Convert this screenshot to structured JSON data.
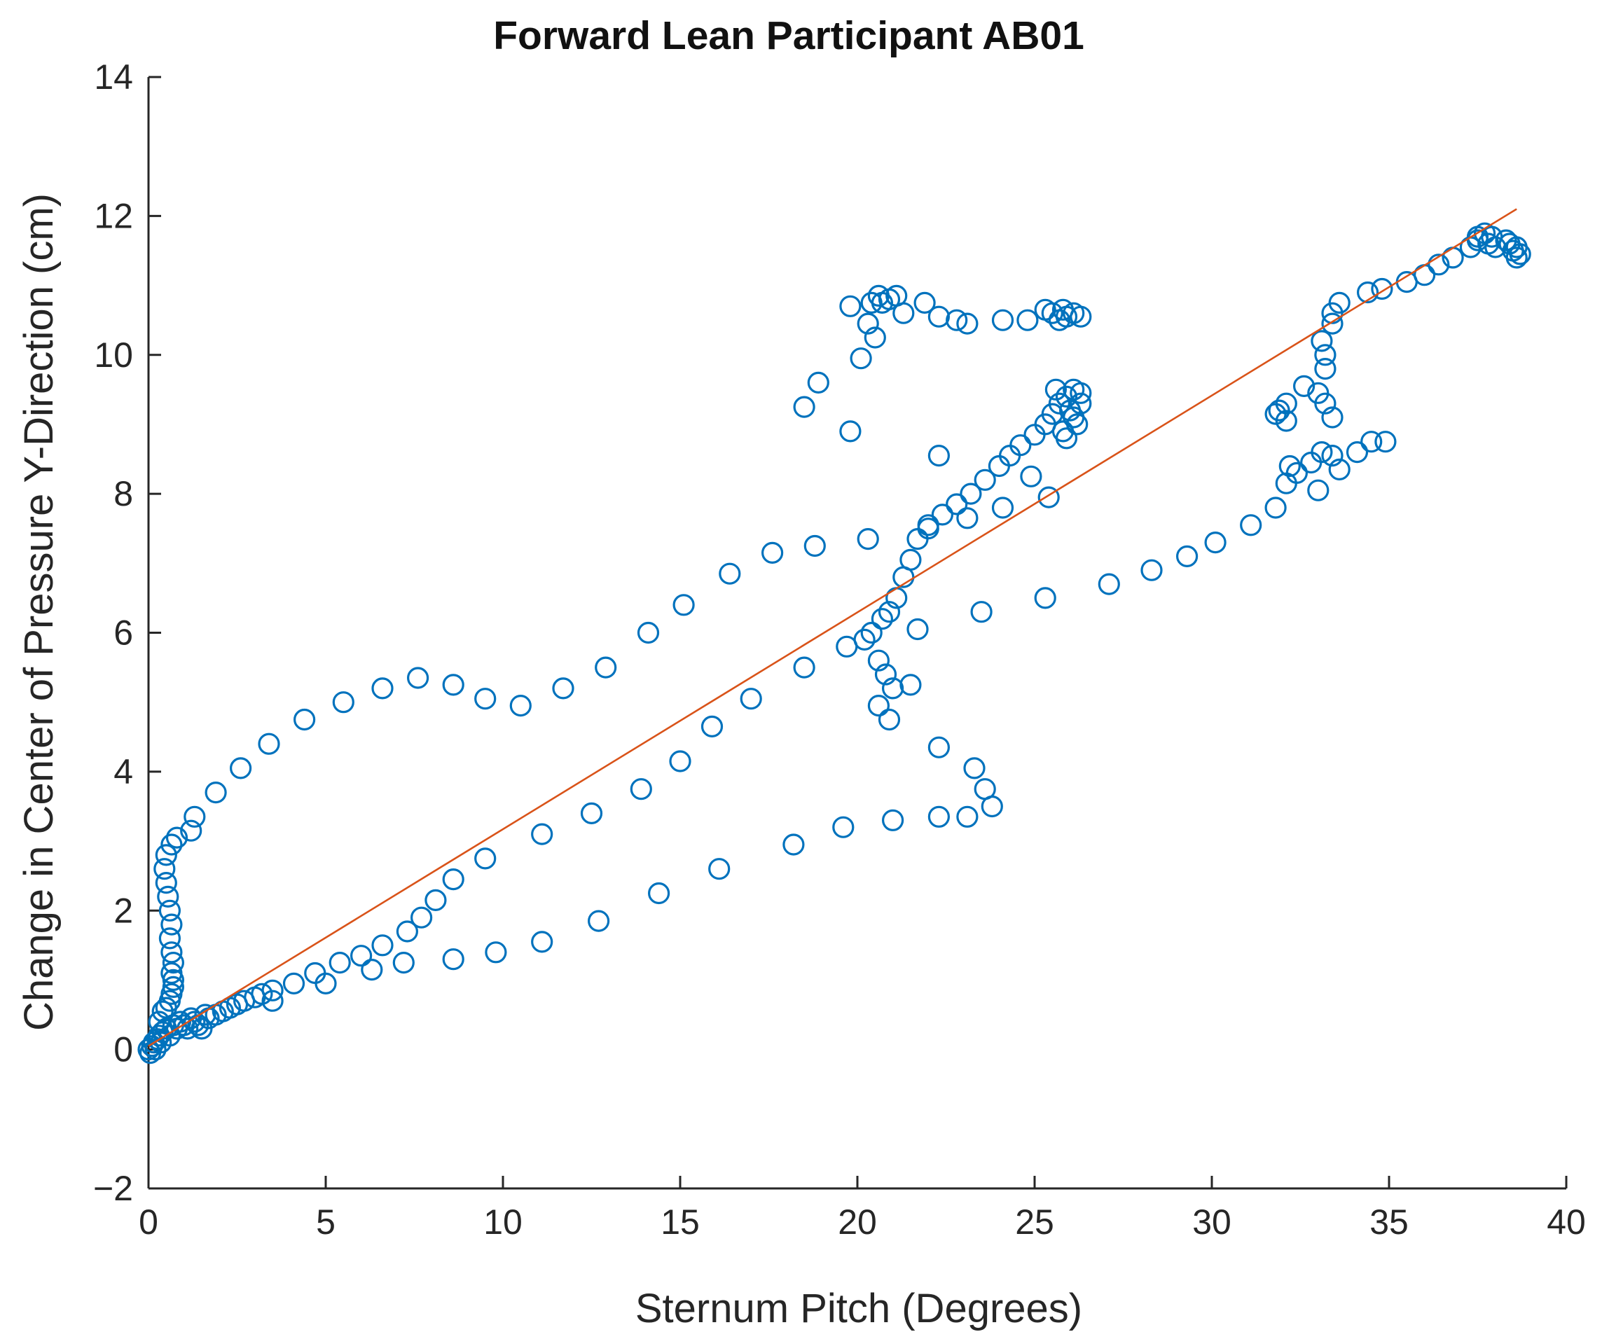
{
  "chart_data": {
    "type": "scatter",
    "title": "Forward Lean Participant AB01",
    "xlabel": "Sternum Pitch (Degrees)",
    "ylabel": "Change in Center of Pressure Y-Direction (cm)",
    "xlim": [
      0,
      40
    ],
    "ylim": [
      -2,
      14
    ],
    "xticks": [
      0,
      5,
      10,
      15,
      20,
      25,
      30,
      35,
      40
    ],
    "yticks": [
      -2,
      0,
      2,
      4,
      6,
      8,
      10,
      12,
      14
    ],
    "ytick_labels": [
      "−2",
      "0",
      "2",
      "4",
      "6",
      "8",
      "10",
      "12",
      "14"
    ],
    "grid": false,
    "colors": {
      "points": "#0072BD",
      "fit": "#D95319"
    },
    "fit_line": {
      "x": [
        0,
        38.6
      ],
      "y": [
        0.05,
        12.1
      ]
    },
    "series": [
      {
        "name": "data",
        "points": [
          [
            0,
            0
          ],
          [
            0.05,
            -0.05
          ],
          [
            0.1,
            0.05
          ],
          [
            0.15,
            0.1
          ],
          [
            0.2,
            0.0
          ],
          [
            0.25,
            0.15
          ],
          [
            0.3,
            0.2
          ],
          [
            0.35,
            0.1
          ],
          [
            0.4,
            0.25
          ],
          [
            0.5,
            0.3
          ],
          [
            0.6,
            0.2
          ],
          [
            0.7,
            0.35
          ],
          [
            0.8,
            0.3
          ],
          [
            0.9,
            0.4
          ],
          [
            1.0,
            0.35
          ],
          [
            1.1,
            0.3
          ],
          [
            1.2,
            0.45
          ],
          [
            1.3,
            0.4
          ],
          [
            1.4,
            0.35
          ],
          [
            1.5,
            0.3
          ],
          [
            1.6,
            0.5
          ],
          [
            1.7,
            0.45
          ],
          [
            1.9,
            0.5
          ],
          [
            2.1,
            0.55
          ],
          [
            2.3,
            0.6
          ],
          [
            2.5,
            0.65
          ],
          [
            2.7,
            0.7
          ],
          [
            3.0,
            0.75
          ],
          [
            3.2,
            0.8
          ],
          [
            3.5,
            0.85
          ],
          [
            3.5,
            0.7
          ],
          [
            0.3,
            0.4
          ],
          [
            0.4,
            0.55
          ],
          [
            0.5,
            0.6
          ],
          [
            0.6,
            0.7
          ],
          [
            0.65,
            0.8
          ],
          [
            0.7,
            0.9
          ],
          [
            0.7,
            1.0
          ],
          [
            0.65,
            1.1
          ],
          [
            0.7,
            1.25
          ],
          [
            0.65,
            1.4
          ],
          [
            0.6,
            1.6
          ],
          [
            0.65,
            1.8
          ],
          [
            0.6,
            2.0
          ],
          [
            0.55,
            2.2
          ],
          [
            0.5,
            2.4
          ],
          [
            0.45,
            2.6
          ],
          [
            0.5,
            2.8
          ],
          [
            0.65,
            2.95
          ],
          [
            0.8,
            3.05
          ],
          [
            1.2,
            3.15
          ],
          [
            1.3,
            3.35
          ],
          [
            1.9,
            3.7
          ],
          [
            2.6,
            4.05
          ],
          [
            3.4,
            4.4
          ],
          [
            4.4,
            4.75
          ],
          [
            5.5,
            5.0
          ],
          [
            6.6,
            5.2
          ],
          [
            7.6,
            5.35
          ],
          [
            8.6,
            5.25
          ],
          [
            9.5,
            5.05
          ],
          [
            10.5,
            4.95
          ],
          [
            11.7,
            5.2
          ],
          [
            12.9,
            5.5
          ],
          [
            14.1,
            6.0
          ],
          [
            15.1,
            6.4
          ],
          [
            16.4,
            6.85
          ],
          [
            17.6,
            7.15
          ],
          [
            18.8,
            7.25
          ],
          [
            20.3,
            7.35
          ],
          [
            4.1,
            0.95
          ],
          [
            4.7,
            1.1
          ],
          [
            5.0,
            0.95
          ],
          [
            5.4,
            1.25
          ],
          [
            6.0,
            1.35
          ],
          [
            6.3,
            1.15
          ],
          [
            6.6,
            1.5
          ],
          [
            7.2,
            1.25
          ],
          [
            7.3,
            1.7
          ],
          [
            7.7,
            1.9
          ],
          [
            8.1,
            2.15
          ],
          [
            8.6,
            2.45
          ],
          [
            9.5,
            2.75
          ],
          [
            11.1,
            3.1
          ],
          [
            12.5,
            3.4
          ],
          [
            13.9,
            3.75
          ],
          [
            15.0,
            4.15
          ],
          [
            15.9,
            4.65
          ],
          [
            17.0,
            5.05
          ],
          [
            18.5,
            5.5
          ],
          [
            19.7,
            5.8
          ],
          [
            20.2,
            5.9
          ],
          [
            20.4,
            6.0
          ],
          [
            20.7,
            6.2
          ],
          [
            20.9,
            6.3
          ],
          [
            21.1,
            6.5
          ],
          [
            21.3,
            6.8
          ],
          [
            21.5,
            7.05
          ],
          [
            21.7,
            7.35
          ],
          [
            22.0,
            7.5
          ],
          [
            22.4,
            7.7
          ],
          [
            22.8,
            7.85
          ],
          [
            23.2,
            8.0
          ],
          [
            23.6,
            8.2
          ],
          [
            24.0,
            8.4
          ],
          [
            24.3,
            8.55
          ],
          [
            24.6,
            8.7
          ],
          [
            25.0,
            8.85
          ],
          [
            25.3,
            9.0
          ],
          [
            25.5,
            9.15
          ],
          [
            25.7,
            9.3
          ],
          [
            25.9,
            9.4
          ],
          [
            26.1,
            9.5
          ],
          [
            26.3,
            9.3
          ],
          [
            26.1,
            9.1
          ],
          [
            25.8,
            8.9
          ],
          [
            26.2,
            9.0
          ],
          [
            25.6,
            9.5
          ],
          [
            26.0,
            9.2
          ],
          [
            25.9,
            8.8
          ],
          [
            26.3,
            9.45
          ],
          [
            21.7,
            6.05
          ],
          [
            20.6,
            5.6
          ],
          [
            20.8,
            5.4
          ],
          [
            21.0,
            5.2
          ],
          [
            21.5,
            5.25
          ],
          [
            20.6,
            4.95
          ],
          [
            20.9,
            4.75
          ],
          [
            22.3,
            4.35
          ],
          [
            23.3,
            4.05
          ],
          [
            23.6,
            3.75
          ],
          [
            23.8,
            3.5
          ],
          [
            23.1,
            3.35
          ],
          [
            22.3,
            3.35
          ],
          [
            21.0,
            3.3
          ],
          [
            19.6,
            3.2
          ],
          [
            18.2,
            2.95
          ],
          [
            16.1,
            2.6
          ],
          [
            14.4,
            2.25
          ],
          [
            12.7,
            1.85
          ],
          [
            11.1,
            1.55
          ],
          [
            9.8,
            1.4
          ],
          [
            8.6,
            1.3
          ],
          [
            25.5,
            10.6
          ],
          [
            25.7,
            10.5
          ],
          [
            25.9,
            10.55
          ],
          [
            26.1,
            10.6
          ],
          [
            26.3,
            10.55
          ],
          [
            25.8,
            10.65
          ],
          [
            25.3,
            10.65
          ],
          [
            24.8,
            10.5
          ],
          [
            24.1,
            10.5
          ],
          [
            23.1,
            10.45
          ],
          [
            22.8,
            10.5
          ],
          [
            22.3,
            10.55
          ],
          [
            21.9,
            10.75
          ],
          [
            21.3,
            10.6
          ],
          [
            20.9,
            10.8
          ],
          [
            20.6,
            10.85
          ],
          [
            21.1,
            10.85
          ],
          [
            20.7,
            10.75
          ],
          [
            20.4,
            10.75
          ],
          [
            19.8,
            10.7
          ],
          [
            20.3,
            10.45
          ],
          [
            20.5,
            10.25
          ],
          [
            20.1,
            9.95
          ],
          [
            18.9,
            9.6
          ],
          [
            18.5,
            9.25
          ],
          [
            19.8,
            8.9
          ],
          [
            22.3,
            8.55
          ],
          [
            24.9,
            8.25
          ],
          [
            25.4,
            7.95
          ],
          [
            24.1,
            7.8
          ],
          [
            23.1,
            7.65
          ],
          [
            22.0,
            7.55
          ],
          [
            32.1,
            8.15
          ],
          [
            31.8,
            7.8
          ],
          [
            31.1,
            7.55
          ],
          [
            30.1,
            7.3
          ],
          [
            29.3,
            7.1
          ],
          [
            28.3,
            6.9
          ],
          [
            27.1,
            6.7
          ],
          [
            25.3,
            6.5
          ],
          [
            23.5,
            6.3
          ],
          [
            32.4,
            8.3
          ],
          [
            32.8,
            8.45
          ],
          [
            33.1,
            8.6
          ],
          [
            33.4,
            8.55
          ],
          [
            33.6,
            8.35
          ],
          [
            33.0,
            8.05
          ],
          [
            32.2,
            8.4
          ],
          [
            34.1,
            8.6
          ],
          [
            34.5,
            8.75
          ],
          [
            34.9,
            8.75
          ],
          [
            33.2,
            9.3
          ],
          [
            33.4,
            9.1
          ],
          [
            33.0,
            9.45
          ],
          [
            32.6,
            9.55
          ],
          [
            31.9,
            9.2
          ],
          [
            32.1,
            9.05
          ],
          [
            31.8,
            9.15
          ],
          [
            32.1,
            9.3
          ],
          [
            33.2,
            9.8
          ],
          [
            33.2,
            10.0
          ],
          [
            33.1,
            10.2
          ],
          [
            33.4,
            10.45
          ],
          [
            33.4,
            10.6
          ],
          [
            33.6,
            10.75
          ],
          [
            34.4,
            10.9
          ],
          [
            34.8,
            10.95
          ],
          [
            35.5,
            11.05
          ],
          [
            36.0,
            11.15
          ],
          [
            36.4,
            11.3
          ],
          [
            36.8,
            11.4
          ],
          [
            37.3,
            11.55
          ],
          [
            37.5,
            11.65
          ],
          [
            37.9,
            11.7
          ],
          [
            38.3,
            11.65
          ],
          [
            38.6,
            11.55
          ],
          [
            38.7,
            11.45
          ],
          [
            38.4,
            11.6
          ],
          [
            38.0,
            11.55
          ],
          [
            37.8,
            11.6
          ],
          [
            37.7,
            11.75
          ],
          [
            37.5,
            11.7
          ],
          [
            38.5,
            11.5
          ],
          [
            38.6,
            11.4
          ]
        ]
      }
    ]
  }
}
